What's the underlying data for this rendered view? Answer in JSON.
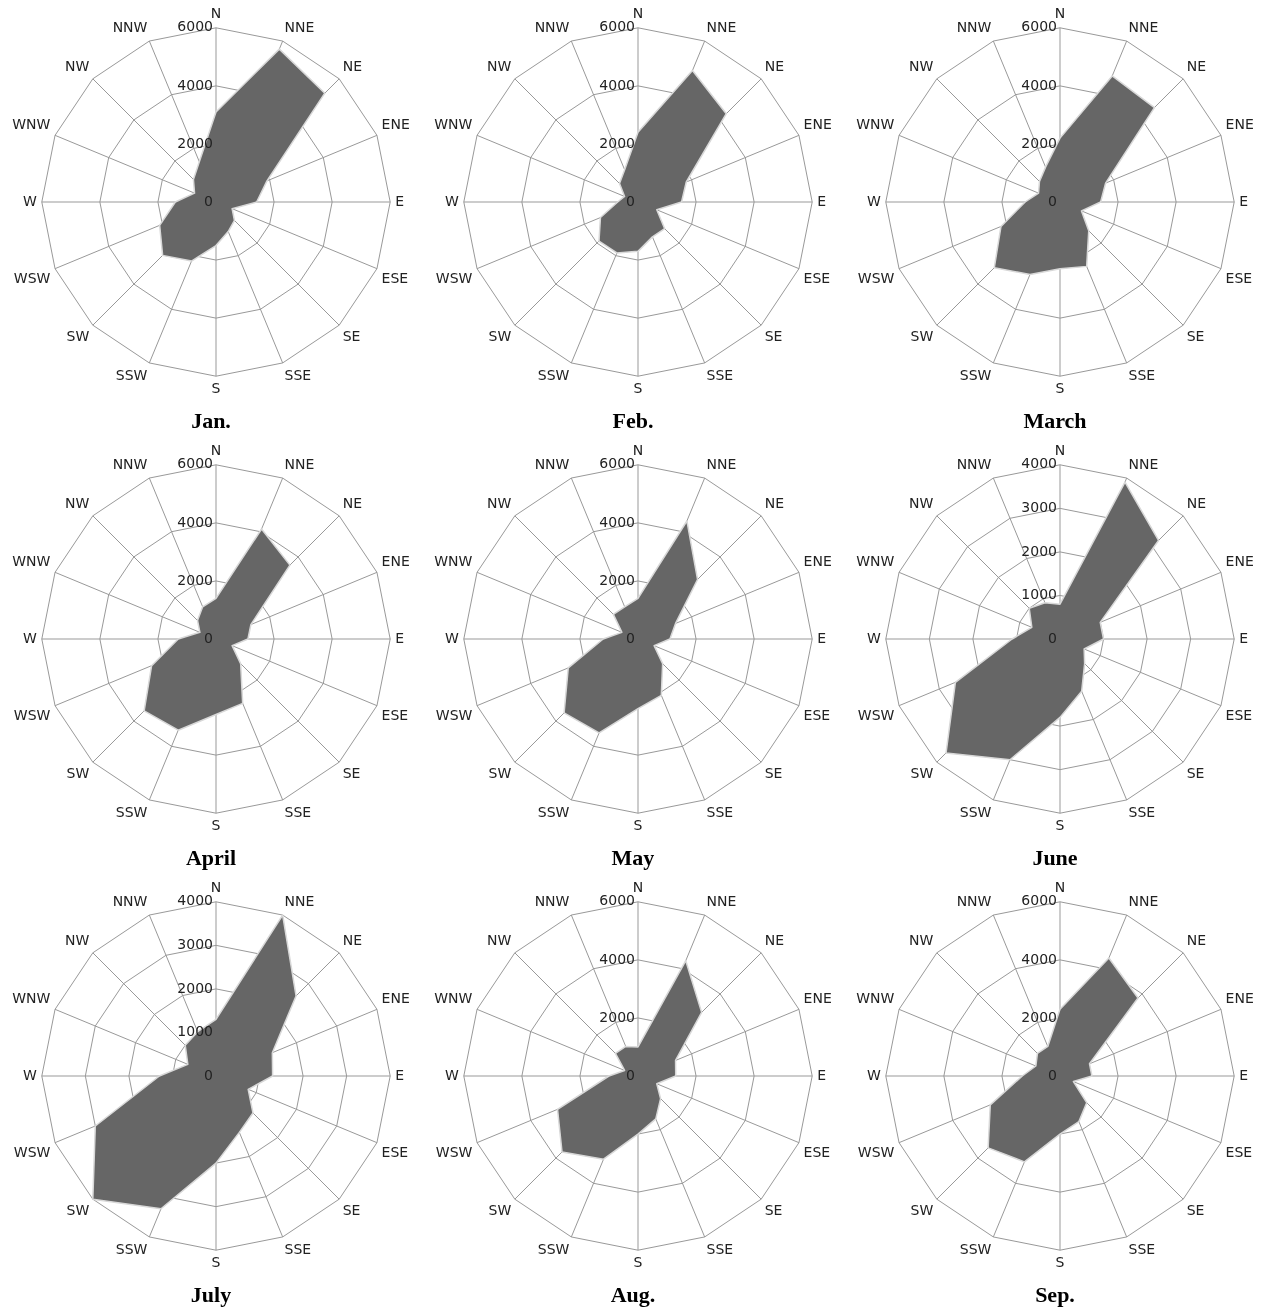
{
  "chart_data": [
    {
      "type": "radar",
      "title": "Jan.",
      "categories": [
        "N",
        "NNE",
        "NE",
        "ENE",
        "E",
        "ESE",
        "SE",
        "SSE",
        "S",
        "SSW",
        "SW",
        "WSW",
        "W",
        "WNW",
        "NW",
        "NNW"
      ],
      "series": [
        {
          "color": "#666666",
          "values": [
            3100,
            5700,
            5300,
            1900,
            1400,
            600,
            900,
            1100,
            1500,
            2200,
            2600,
            2100,
            1400,
            800,
            1100,
            1500
          ]
        }
      ],
      "ylim": [
        0,
        6000
      ],
      "yticks": [
        0,
        2000,
        4000,
        6000
      ],
      "grid": true,
      "marker": "none"
    },
    {
      "type": "radar",
      "title": "Feb.",
      "categories": [
        "N",
        "NNE",
        "NE",
        "ENE",
        "E",
        "ESE",
        "SE",
        "SSE",
        "S",
        "SSW",
        "SW",
        "WSW",
        "W",
        "WNW",
        "NW",
        "NNW"
      ],
      "series": [
        {
          "color": "#666666",
          "values": [
            2400,
            4900,
            4300,
            1800,
            1500,
            700,
            1300,
            1300,
            1700,
            1900,
            1900,
            1400,
            700,
            500,
            900,
            1200
          ]
        }
      ],
      "ylim": [
        0,
        6000
      ],
      "yticks": [
        0,
        2000,
        4000,
        6000
      ],
      "grid": true,
      "marker": "none"
    },
    {
      "type": "radar",
      "title": "March",
      "categories": [
        "N",
        "NNE",
        "NE",
        "ENE",
        "E",
        "ESE",
        "SE",
        "SSE",
        "S",
        "SSW",
        "SW",
        "WSW",
        "W",
        "WNW",
        "NW",
        "NNW"
      ],
      "series": [
        {
          "color": "#666666",
          "values": [
            2200,
            4700,
            4600,
            1700,
            1400,
            800,
            1400,
            2400,
            2300,
            2700,
            3200,
            2200,
            1200,
            800,
            1000,
            1300
          ]
        }
      ],
      "ylim": [
        0,
        6000
      ],
      "yticks": [
        0,
        2000,
        4000,
        6000
      ],
      "grid": true,
      "marker": "none"
    },
    {
      "type": "radar",
      "title": "April",
      "categories": [
        "N",
        "NNE",
        "NE",
        "ENE",
        "E",
        "ESE",
        "SE",
        "SSE",
        "S",
        "SSW",
        "SW",
        "WSW",
        "W",
        "WNW",
        "NW",
        "NNW"
      ],
      "series": [
        {
          "color": "#666666",
          "values": [
            1400,
            4100,
            3600,
            1300,
            1100,
            600,
            1200,
            2400,
            2600,
            3400,
            3500,
            2400,
            1300,
            600,
            900,
            1200
          ]
        }
      ],
      "ylim": [
        0,
        6000
      ],
      "yticks": [
        0,
        2000,
        4000,
        6000
      ],
      "grid": true,
      "marker": "none"
    },
    {
      "type": "radar",
      "title": "May",
      "categories": [
        "N",
        "NNE",
        "NE",
        "ENE",
        "E",
        "ESE",
        "SE",
        "SSE",
        "S",
        "SSW",
        "SW",
        "WSW",
        "W",
        "WNW",
        "NW",
        "NNW"
      ],
      "series": [
        {
          "color": "#666666",
          "values": [
            1400,
            4400,
            2900,
            1400,
            1100,
            600,
            1200,
            2100,
            2400,
            3500,
            3600,
            2600,
            1200,
            600,
            1200,
            1200
          ]
        }
      ],
      "ylim": [
        0,
        6000
      ],
      "yticks": [
        0,
        2000,
        4000,
        6000
      ],
      "grid": true,
      "marker": "none"
    },
    {
      "type": "radar",
      "title": "June",
      "categories": [
        "N",
        "NNE",
        "NE",
        "ENE",
        "E",
        "ESE",
        "SE",
        "SSE",
        "S",
        "SSW",
        "SW",
        "WSW",
        "W",
        "WNW",
        "NW",
        "NNW"
      ],
      "series": [
        {
          "color": "#666666",
          "values": [
            800,
            3900,
            3200,
            1000,
            1000,
            600,
            800,
            1300,
            1800,
            3000,
            3700,
            2600,
            1100,
            700,
            1000,
            900
          ]
        }
      ],
      "ylim": [
        0,
        4000
      ],
      "yticks": [
        0,
        1000,
        2000,
        3000,
        4000
      ],
      "grid": true,
      "marker": "none"
    },
    {
      "type": "radar",
      "title": "July",
      "categories": [
        "N",
        "NNE",
        "NE",
        "ENE",
        "E",
        "ESE",
        "SE",
        "SSE",
        "S",
        "SSW",
        "SW",
        "WSW",
        "W",
        "WNW",
        "NW",
        "NNW"
      ],
      "series": [
        {
          "color": "#666666",
          "values": [
            1300,
            4000,
            2600,
            1400,
            1300,
            800,
            1200,
            1400,
            2000,
            3300,
            4000,
            3000,
            1300,
            700,
            1000,
            1100
          ]
        }
      ],
      "ylim": [
        0,
        4000
      ],
      "yticks": [
        0,
        1000,
        2000,
        3000,
        4000
      ],
      "grid": true,
      "marker": "none"
    },
    {
      "type": "radar",
      "title": "Aug.",
      "categories": [
        "N",
        "NNE",
        "NE",
        "ENE",
        "E",
        "ESE",
        "SE",
        "SSE",
        "S",
        "SSW",
        "SW",
        "WSW",
        "W",
        "WNW",
        "NW",
        "NNW"
      ],
      "series": [
        {
          "color": "#666666",
          "values": [
            1000,
            4300,
            3100,
            1400,
            1300,
            700,
            1100,
            1600,
            2000,
            3100,
            3700,
            3000,
            1000,
            500,
            1100,
            1100
          ]
        }
      ],
      "ylim": [
        0,
        6000
      ],
      "yticks": [
        0,
        2000,
        4000,
        6000
      ],
      "grid": true,
      "marker": "none"
    },
    {
      "type": "radar",
      "title": "Sep.",
      "categories": [
        "N",
        "NNE",
        "NE",
        "ENE",
        "E",
        "ESE",
        "SE",
        "SSE",
        "S",
        "SSW",
        "SW",
        "WSW",
        "W",
        "WNW",
        "NW",
        "NNW"
      ],
      "series": [
        {
          "color": "#666666",
          "values": [
            2300,
            4400,
            3800,
            1100,
            1100,
            500,
            1300,
            1700,
            2000,
            3200,
            3500,
            2600,
            1300,
            900,
            1100,
            1100
          ]
        }
      ],
      "ylim": [
        0,
        6000
      ],
      "yticks": [
        0,
        2000,
        4000,
        6000
      ],
      "grid": true,
      "marker": "none"
    }
  ]
}
